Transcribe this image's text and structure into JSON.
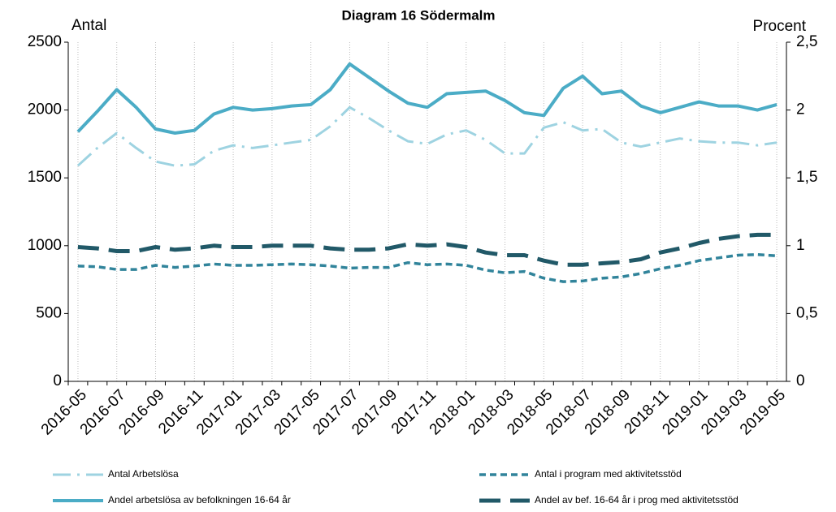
{
  "chart_data": {
    "type": "line",
    "title": "Diagram 16 Södermalm",
    "y_label": "Antal",
    "y2_label": "Procent",
    "categories": [
      "2016-05",
      null,
      "2016-07",
      null,
      "2016-09",
      null,
      "2016-11",
      null,
      "2017-01",
      null,
      "2017-03",
      null,
      "2017-05",
      null,
      "2017-07",
      null,
      "2017-09",
      null,
      "2017-11",
      null,
      "2018-01",
      null,
      "2018-03",
      null,
      "2018-05",
      null,
      "2018-07",
      null,
      "2018-09",
      null,
      "2018-11",
      null,
      "2019-01",
      null,
      "2019-03",
      null,
      "2019-05"
    ],
    "series": [
      {
        "name": "Antal Arbetslösa",
        "color": "#9ed3e1",
        "style": "dashdot",
        "axis": "y",
        "values": [
          1590,
          1720,
          1830,
          1720,
          1620,
          1590,
          1600,
          1700,
          1740,
          1720,
          1740,
          1760,
          1780,
          1880,
          2020,
          1940,
          1850,
          1770,
          1750,
          1820,
          1850,
          1780,
          1680,
          1680,
          1870,
          1910,
          1850,
          1860,
          1760,
          1730,
          1760,
          1790,
          1770,
          1760,
          1760,
          1740,
          1760
        ]
      },
      {
        "name": "Antal i program med aktivitetsstöd",
        "color": "#31849b",
        "style": "dashed",
        "axis": "y",
        "values": [
          850,
          845,
          825,
          825,
          855,
          840,
          850,
          865,
          855,
          855,
          860,
          865,
          860,
          850,
          835,
          840,
          840,
          875,
          860,
          865,
          855,
          820,
          800,
          810,
          760,
          735,
          740,
          760,
          770,
          795,
          830,
          855,
          890,
          910,
          930,
          935,
          925
        ]
      },
      {
        "name": "Andel arbetslösa av befolkningen 16-64 år",
        "color": "#4bacc6",
        "style": "solid",
        "axis": "y2",
        "values": [
          1.84,
          1.99,
          2.15,
          2.02,
          1.86,
          1.83,
          1.85,
          1.97,
          2.02,
          2.0,
          2.01,
          2.03,
          2.04,
          2.15,
          2.34,
          2.24,
          2.14,
          2.05,
          2.02,
          2.12,
          2.13,
          2.14,
          2.07,
          1.98,
          1.96,
          2.16,
          2.25,
          2.12,
          2.14,
          2.03,
          1.98,
          2.02,
          2.06,
          2.03,
          2.03,
          2.0,
          2.04
        ]
      },
      {
        "name": "Andel av bef. 16-64 år i prog med aktivitetsstöd",
        "color": "#215968",
        "style": "longdash",
        "axis": "y2",
        "values": [
          0.99,
          0.98,
          0.96,
          0.96,
          0.99,
          0.97,
          0.98,
          1.0,
          0.99,
          0.99,
          1.0,
          1.0,
          1.0,
          0.98,
          0.97,
          0.97,
          0.98,
          1.01,
          1.0,
          1.01,
          0.99,
          0.95,
          0.93,
          0.93,
          0.89,
          0.86,
          0.86,
          0.87,
          0.88,
          0.9,
          0.95,
          0.98,
          1.02,
          1.05,
          1.07,
          1.08,
          1.08
        ]
      }
    ],
    "ylim": [
      0,
      2500
    ],
    "yticks": [
      0,
      500,
      1000,
      1500,
      2000,
      2500
    ],
    "y2lim": [
      0,
      2.5
    ],
    "y2ticks": [
      0,
      {
        "value": 0.5,
        "label": "0,5"
      },
      1,
      {
        "value": 1.5,
        "label": "1,5"
      },
      2,
      {
        "value": 2.5,
        "label": "2,5"
      }
    ],
    "xgrid": true
  }
}
